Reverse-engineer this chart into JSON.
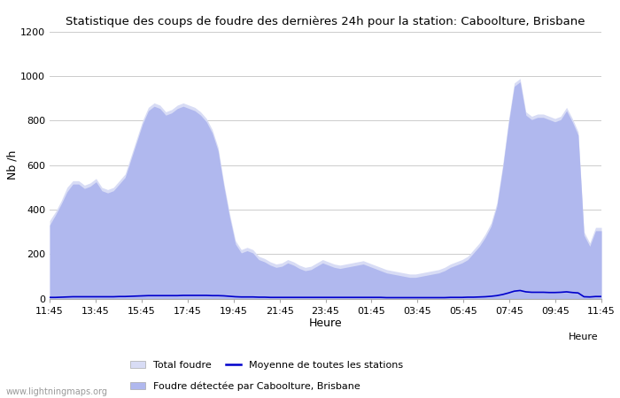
{
  "title": "Statistique des coups de foudre des dernières 24h pour la station: Caboolture, Brisbane",
  "xlabel": "Heure",
  "ylabel": "Nb /h",
  "ylim": [
    0,
    1200
  ],
  "yticks": [
    0,
    200,
    400,
    600,
    800,
    1000,
    1200
  ],
  "xtick_labels": [
    "11:45",
    "13:45",
    "15:45",
    "17:45",
    "19:45",
    "21:45",
    "23:45",
    "01:45",
    "03:45",
    "05:45",
    "07:45",
    "09:45",
    "11:45"
  ],
  "bg_color": "#ffffff",
  "fill_color_total": "#d8dcf5",
  "fill_color_station": "#b0b8ee",
  "line_color_avg": "#0000cc",
  "watermark": "www.lightningmaps.org",
  "legend": {
    "total": "Total foudre",
    "avg": "Moyenne de toutes les stations",
    "station": "Foudre détectée par Caboolture, Brisbane"
  },
  "x_points": [
    0,
    1,
    2,
    3,
    4,
    5,
    6,
    7,
    8,
    9,
    10,
    11,
    12,
    13,
    14,
    15,
    16,
    17,
    18,
    19,
    20,
    21,
    22,
    23,
    24,
    25,
    26,
    27,
    28,
    29,
    30,
    31,
    32,
    33,
    34,
    35,
    36,
    37,
    38,
    39,
    40,
    41,
    42,
    43,
    44,
    45,
    46,
    47,
    48,
    49,
    50,
    51,
    52,
    53,
    54,
    55,
    56,
    57,
    58,
    59,
    60,
    61,
    62,
    63,
    64,
    65,
    66,
    67,
    68,
    69,
    70,
    71,
    72,
    73,
    74,
    75,
    76,
    77,
    78,
    79,
    80,
    81,
    82,
    83,
    84,
    85,
    86,
    87,
    88,
    89,
    90,
    91,
    92,
    93,
    94,
    95
  ],
  "total_foudre": [
    350,
    390,
    440,
    500,
    530,
    530,
    510,
    520,
    540,
    500,
    490,
    500,
    530,
    560,
    640,
    720,
    800,
    860,
    880,
    870,
    840,
    850,
    870,
    880,
    870,
    860,
    840,
    810,
    760,
    680,
    520,
    380,
    260,
    220,
    230,
    220,
    190,
    180,
    165,
    155,
    160,
    175,
    165,
    150,
    140,
    145,
    160,
    175,
    165,
    155,
    150,
    155,
    160,
    165,
    170,
    160,
    150,
    140,
    130,
    125,
    120,
    115,
    110,
    110,
    115,
    120,
    125,
    130,
    140,
    155,
    165,
    175,
    190,
    220,
    250,
    290,
    340,
    430,
    600,
    800,
    970,
    990,
    840,
    820,
    830,
    830,
    820,
    810,
    820,
    860,
    810,
    750,
    300,
    250,
    320,
    320
  ],
  "station_foudre": [
    330,
    375,
    425,
    480,
    515,
    515,
    495,
    505,
    525,
    485,
    475,
    485,
    515,
    545,
    625,
    705,
    785,
    845,
    865,
    855,
    825,
    835,
    855,
    865,
    855,
    845,
    825,
    795,
    745,
    665,
    505,
    365,
    245,
    205,
    215,
    205,
    175,
    165,
    150,
    140,
    145,
    160,
    150,
    135,
    125,
    130,
    145,
    160,
    150,
    140,
    135,
    140,
    145,
    150,
    155,
    145,
    135,
    125,
    115,
    110,
    105,
    100,
    95,
    95,
    100,
    105,
    110,
    115,
    125,
    140,
    150,
    160,
    175,
    205,
    235,
    275,
    325,
    415,
    585,
    785,
    955,
    975,
    825,
    805,
    815,
    815,
    805,
    795,
    805,
    845,
    795,
    735,
    285,
    235,
    305,
    305
  ],
  "avg_line": [
    5,
    5,
    6,
    7,
    8,
    8,
    8,
    8,
    8,
    8,
    8,
    8,
    9,
    9,
    10,
    11,
    12,
    13,
    13,
    13,
    13,
    13,
    13,
    14,
    14,
    14,
    14,
    14,
    13,
    13,
    12,
    10,
    8,
    7,
    7,
    7,
    6,
    6,
    5,
    5,
    5,
    5,
    5,
    5,
    5,
    5,
    5,
    5,
    5,
    5,
    5,
    5,
    5,
    5,
    5,
    5,
    5,
    5,
    4,
    4,
    4,
    4,
    4,
    4,
    4,
    4,
    4,
    4,
    4,
    5,
    5,
    5,
    6,
    6,
    7,
    8,
    10,
    13,
    18,
    25,
    33,
    36,
    30,
    28,
    28,
    28,
    27,
    27,
    28,
    30,
    27,
    25,
    8,
    7,
    9,
    9
  ]
}
